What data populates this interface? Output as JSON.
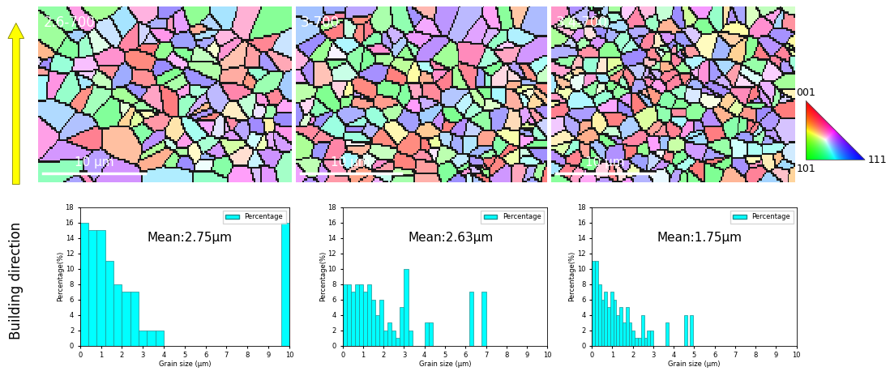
{
  "chart_data": [
    {
      "type": "histogram",
      "annotation": "Mean:2.75μm",
      "x_label": "Grain size (μm)",
      "y_label": "Percentage(%)",
      "bins": [
        0,
        0.4,
        0.8,
        1.2,
        1.6,
        2.0,
        2.4,
        2.8,
        3.2,
        3.6,
        4.0,
        4.4,
        4.8,
        5.2,
        5.6,
        6.0,
        6.4,
        6.8,
        7.2,
        7.6,
        8.0,
        8.4,
        8.8,
        9.2,
        9.6,
        10
      ],
      "series": [
        {
          "name": "Percentage",
          "color": "#00ffff",
          "values": [
            16,
            15,
            15,
            11,
            8,
            7,
            7,
            2,
            2,
            2,
            0,
            0,
            0,
            0,
            0,
            0,
            0,
            0,
            0,
            0,
            0,
            0,
            0,
            0,
            16
          ]
        }
      ],
      "xlim": [
        0,
        10
      ],
      "xticks": [
        0,
        1,
        2,
        3,
        4,
        5,
        6,
        7,
        8,
        9,
        10
      ],
      "ylim": [
        0,
        18
      ],
      "yticks": [
        0,
        2,
        4,
        6,
        8,
        10,
        12,
        14,
        16,
        18
      ],
      "legend": "upper right"
    },
    {
      "type": "histogram",
      "annotation": "Mean:2.63μm",
      "x_label": "Grain size (μm)",
      "y_label": "Percentage(%)",
      "bins": [
        0,
        0.2,
        0.4,
        0.6,
        0.8,
        1.0,
        1.2,
        1.4,
        1.6,
        1.8,
        2.0,
        2.2,
        2.4,
        2.6,
        2.8,
        3.0,
        3.2,
        3.4,
        3.6,
        3.8,
        4.0,
        4.2,
        4.4,
        4.6,
        4.8,
        5.0,
        5.2,
        5.4,
        5.6,
        5.8,
        6.0,
        6.2,
        6.4,
        6.6,
        6.8,
        7.0
      ],
      "series": [
        {
          "name": "Percentage",
          "color": "#00ffff",
          "values": [
            8,
            8,
            7,
            8,
            8,
            7,
            8,
            6,
            4,
            6,
            2,
            3,
            2,
            1,
            5,
            10,
            2,
            0,
            0,
            0,
            3,
            3,
            0,
            0,
            0,
            0,
            0,
            0,
            0,
            0,
            0,
            7,
            0,
            0,
            7
          ]
        }
      ],
      "xlim": [
        0,
        10
      ],
      "xticks": [
        0,
        1,
        2,
        3,
        4,
        5,
        6,
        7,
        8,
        9,
        10
      ],
      "ylim": [
        0,
        18
      ],
      "yticks": [
        0,
        2,
        4,
        6,
        8,
        10,
        12,
        14,
        16,
        18
      ],
      "legend": "upper right"
    },
    {
      "type": "histogram",
      "annotation": "Mean:1.75μm",
      "x_label": "Grain size (μm)",
      "y_label": "Percentage(%)",
      "bins": [
        0,
        0.15,
        0.3,
        0.45,
        0.6,
        0.75,
        0.9,
        1.05,
        1.2,
        1.35,
        1.5,
        1.65,
        1.8,
        1.95,
        2.1,
        2.25,
        2.4,
        2.55,
        2.7,
        2.85,
        3.0,
        3.15,
        3.3,
        3.45,
        3.6,
        3.75,
        3.9,
        4.05,
        4.2,
        4.35,
        4.5,
        4.65,
        4.8,
        4.95
      ],
      "series": [
        {
          "name": "Percentage",
          "color": "#00ffff",
          "values": [
            11,
            11,
            8,
            6,
            7,
            5,
            7,
            6,
            4,
            5,
            3,
            5,
            3,
            2,
            1,
            1,
            4,
            1,
            2,
            2,
            0,
            0,
            0,
            0,
            3,
            0,
            0,
            0,
            0,
            0,
            4,
            0,
            4
          ]
        }
      ],
      "xlim": [
        0,
        10
      ],
      "xticks": [
        0,
        1,
        2,
        3,
        4,
        5,
        6,
        7,
        8,
        9,
        10
      ],
      "ylim": [
        0,
        18
      ],
      "yticks": [
        0,
        2,
        4,
        6,
        8,
        10,
        12,
        14,
        16,
        18
      ],
      "legend": "upper right"
    }
  ],
  "maps": [
    {
      "label": "2.6-700",
      "scale_bar": "10 μm"
    },
    {
      "label": "3-700",
      "scale_bar": "10 μm"
    },
    {
      "label": "3.4-700",
      "scale_bar": "10 μm"
    }
  ],
  "ipf_legend": [
    "001",
    "101",
    "111"
  ],
  "side_label": "Building direction"
}
